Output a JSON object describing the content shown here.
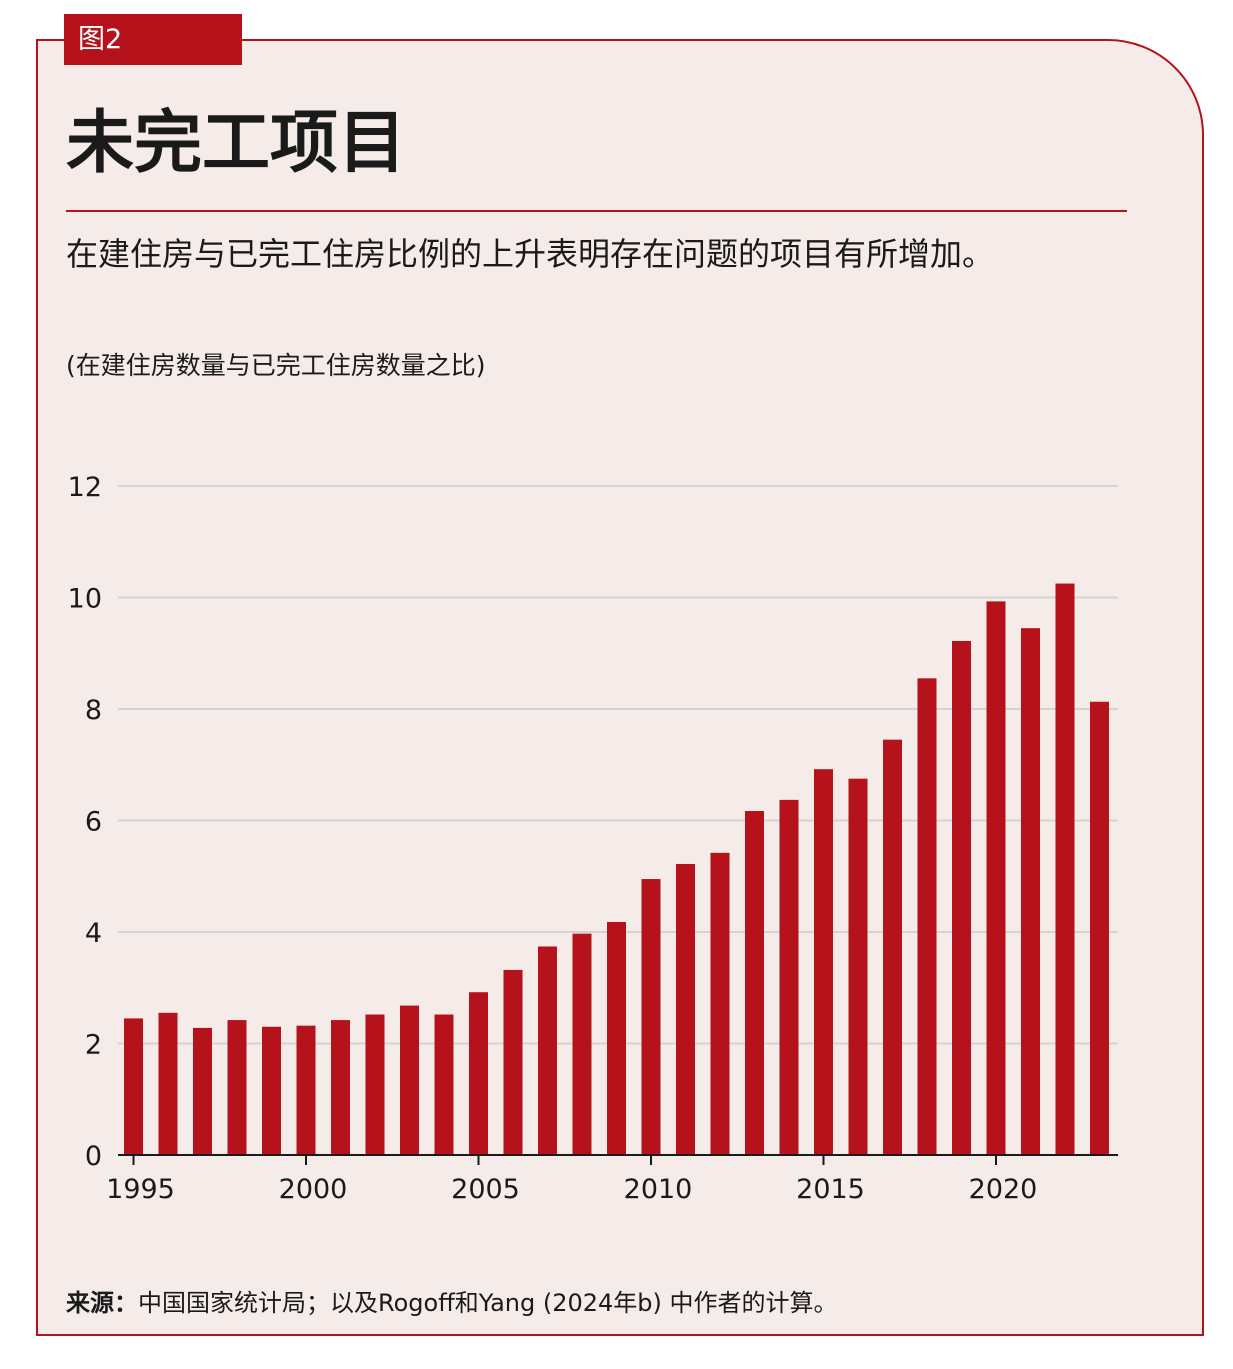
{
  "figure_tag": "图2",
  "title": "未完工项目",
  "subtitle": "在建住房与已完工住房比例的上升表明存在问题的项目有所增加。",
  "units_note": "(在建住房数量与已完工住房数量之比)",
  "source": {
    "label": "来源：",
    "text": "中国国家统计局；以及Rogoff和Yang (2024年b) 中作者的计算。"
  },
  "colors": {
    "accent": "#b5121b",
    "panel_background": "#f5ecea",
    "gridline": "#d3d3d3"
  },
  "chart_data": {
    "type": "bar",
    "x": [
      1995,
      1996,
      1997,
      1998,
      1999,
      2000,
      2001,
      2002,
      2003,
      2004,
      2005,
      2006,
      2007,
      2008,
      2009,
      2010,
      2011,
      2012,
      2013,
      2014,
      2015,
      2016,
      2017,
      2018,
      2019,
      2020,
      2021,
      2022,
      2023
    ],
    "values": [
      2.45,
      2.55,
      2.28,
      2.42,
      2.3,
      2.32,
      2.42,
      2.52,
      2.68,
      2.52,
      2.92,
      3.32,
      3.74,
      3.97,
      4.18,
      4.95,
      5.22,
      5.42,
      6.17,
      6.37,
      6.92,
      6.75,
      7.45,
      8.55,
      9.22,
      9.93,
      9.45,
      10.25,
      8.13
    ],
    "xticks": [
      1995,
      2000,
      2005,
      2010,
      2015,
      2020
    ],
    "yticks": [
      0,
      2,
      4,
      6,
      8,
      10,
      12
    ],
    "ylim": [
      0,
      12
    ],
    "grid": true,
    "legend": "none"
  }
}
